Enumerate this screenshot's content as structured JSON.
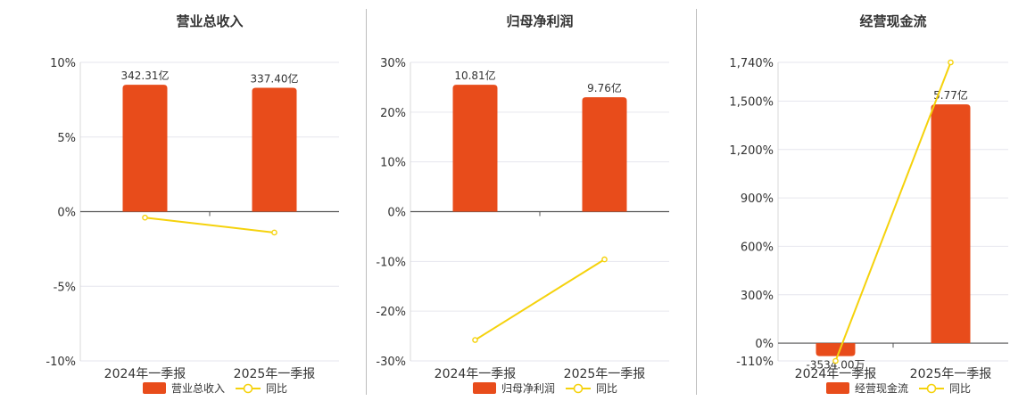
{
  "chart_data": [
    {
      "type": "bar",
      "title": "营业总收入",
      "categories": [
        "2024年一季报",
        "2025年一季报"
      ],
      "ylim": [
        -10,
        10
      ],
      "ytick_labels": [
        "10%",
        "5%",
        "0%",
        "-5%",
        "-10%"
      ],
      "ytick_values": [
        10,
        5,
        0,
        -5,
        -10
      ],
      "grid": true,
      "legend_position": "bottom",
      "series": [
        {
          "name": "营业总收入",
          "kind": "bar",
          "color": "#e84c1b",
          "bar_heights_pct": [
            8.5,
            8.3
          ],
          "labels": [
            "342.31亿",
            "337.40亿"
          ]
        },
        {
          "name": "同比",
          "kind": "line",
          "color": "#f5d20c",
          "values": [
            -0.4,
            -1.4
          ]
        }
      ]
    },
    {
      "type": "bar",
      "title": "归母净利润",
      "categories": [
        "2024年一季报",
        "2025年一季报"
      ],
      "ylim": [
        -30,
        30
      ],
      "ytick_labels": [
        "30%",
        "20%",
        "10%",
        "0%",
        "-10%",
        "-20%",
        "-30%"
      ],
      "ytick_values": [
        30,
        20,
        10,
        0,
        -10,
        -20,
        -30
      ],
      "grid": true,
      "legend_position": "bottom",
      "series": [
        {
          "name": "归母净利润",
          "kind": "bar",
          "color": "#e84c1b",
          "bar_heights_pct": [
            25.5,
            23.0
          ],
          "labels": [
            "10.81亿",
            "9.76亿"
          ]
        },
        {
          "name": "同比",
          "kind": "line",
          "color": "#f5d20c",
          "values": [
            -25.8,
            -9.6
          ]
        }
      ]
    },
    {
      "type": "bar",
      "title": "经营现金流",
      "categories": [
        "2024年一季报",
        "2025年一季报"
      ],
      "ylim": [
        -110,
        1740
      ],
      "ytick_labels": [
        "1,740%",
        "1,500%",
        "1,200%",
        "900%",
        "600%",
        "300%",
        "0%",
        "-110%"
      ],
      "ytick_values": [
        1740,
        1500,
        1200,
        900,
        600,
        300,
        0,
        -110
      ],
      "grid": true,
      "legend_position": "bottom",
      "series": [
        {
          "name": "经营现金流",
          "kind": "bar",
          "color": "#e84c1b",
          "bar_heights_pct": [
            -80,
            1480
          ],
          "labels": [
            "-3534.00万",
            "5.77亿"
          ]
        },
        {
          "name": "同比",
          "kind": "line",
          "color": "#f5d20c",
          "values": [
            -110,
            1740
          ]
        }
      ]
    }
  ]
}
